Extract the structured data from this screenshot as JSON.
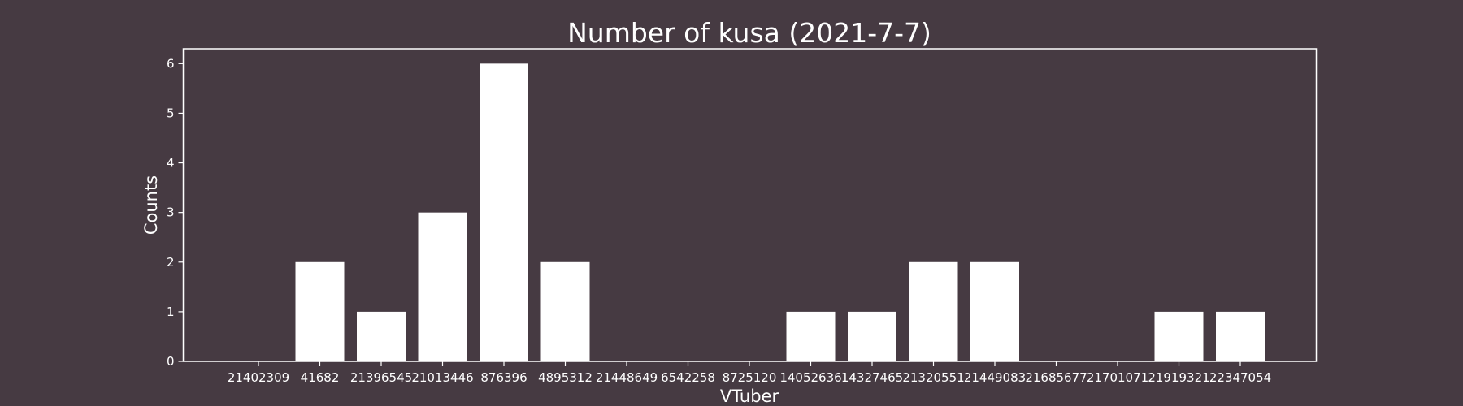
{
  "chart_data": {
    "type": "bar",
    "title": "Number of kusa (2021-7-7)",
    "xlabel": "VTuber",
    "ylabel": "Counts",
    "categories": [
      "21402309",
      "41682",
      "21396545",
      "21013446",
      "876396",
      "4895312",
      "21448649",
      "6542258",
      "8725120",
      "14052636",
      "14327465",
      "21320551",
      "21449083",
      "21685677",
      "21701071",
      "21919321",
      "22347054"
    ],
    "values": [
      0,
      2,
      1,
      3,
      6,
      2,
      0,
      0,
      0,
      1,
      1,
      2,
      2,
      0,
      0,
      1,
      1
    ],
    "ylim": [
      0,
      6.3
    ],
    "yticks": [
      0,
      1,
      2,
      3,
      4,
      5,
      6
    ],
    "grid": false,
    "legend": "none",
    "colors": {
      "background": "#463a42",
      "bar": "#ffffff",
      "axis": "#ffffff",
      "text": "#ffffff"
    }
  }
}
